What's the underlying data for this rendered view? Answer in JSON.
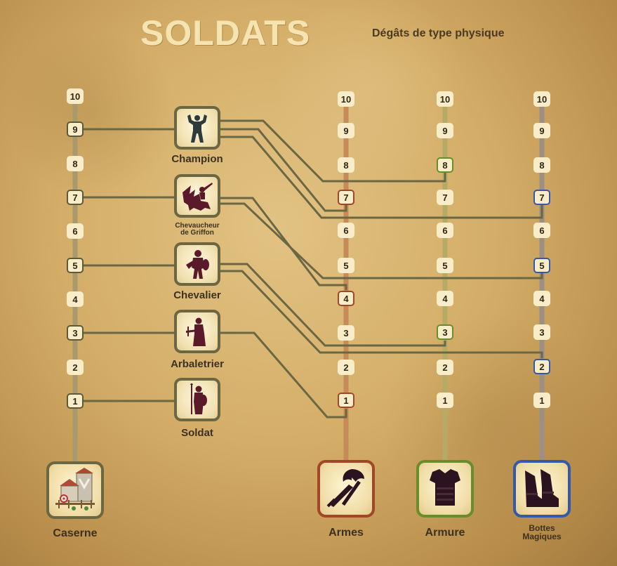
{
  "header": {
    "title": "SOLDATS",
    "subtitle": "Dégâts de type physique"
  },
  "colors": {
    "connector": "#6b6743",
    "caserne_rail": "#a89a6e",
    "armes": "#a24629",
    "armure": "#6a8d2b",
    "bottes": "#3658a8",
    "silhouette": "#5a1a2a"
  },
  "levels": [
    "1",
    "2",
    "3",
    "4",
    "5",
    "6",
    "7",
    "8",
    "9",
    "10"
  ],
  "units": [
    {
      "name": "Champion",
      "caserne_level": "9",
      "icon": "champion-icon",
      "armes": "7",
      "armure": "8",
      "bottes": "7"
    },
    {
      "name": "Chevaucheur de Griffon",
      "name_line1": "Chevaucheur",
      "name_line2": "de Griffon",
      "caserne_level": "7",
      "icon": "griffon-rider-icon",
      "armes": "4",
      "armure": "",
      "bottes": "5"
    },
    {
      "name": "Chevalier",
      "caserne_level": "5",
      "icon": "knight-icon",
      "armes": "",
      "armure": "3",
      "bottes": "2"
    },
    {
      "name": "Arbaletrier",
      "caserne_level": "3",
      "icon": "crossbowman-icon",
      "armes": "1",
      "armure": "",
      "bottes": ""
    },
    {
      "name": "Soldat",
      "caserne_level": "1",
      "icon": "soldier-icon",
      "armes": "",
      "armure": "",
      "bottes": ""
    }
  ],
  "buildings": [
    {
      "key": "caserne",
      "label": "Caserne",
      "icon": "barracks-icon"
    },
    {
      "key": "armes",
      "label": "Armes",
      "icon": "weapons-icon"
    },
    {
      "key": "armure",
      "label": "Armure",
      "icon": "armor-icon"
    },
    {
      "key": "bottes",
      "label": "Bottes Magiques",
      "label_line1": "Bottes",
      "label_line2": "Magiques",
      "icon": "magic-boots-icon"
    }
  ]
}
